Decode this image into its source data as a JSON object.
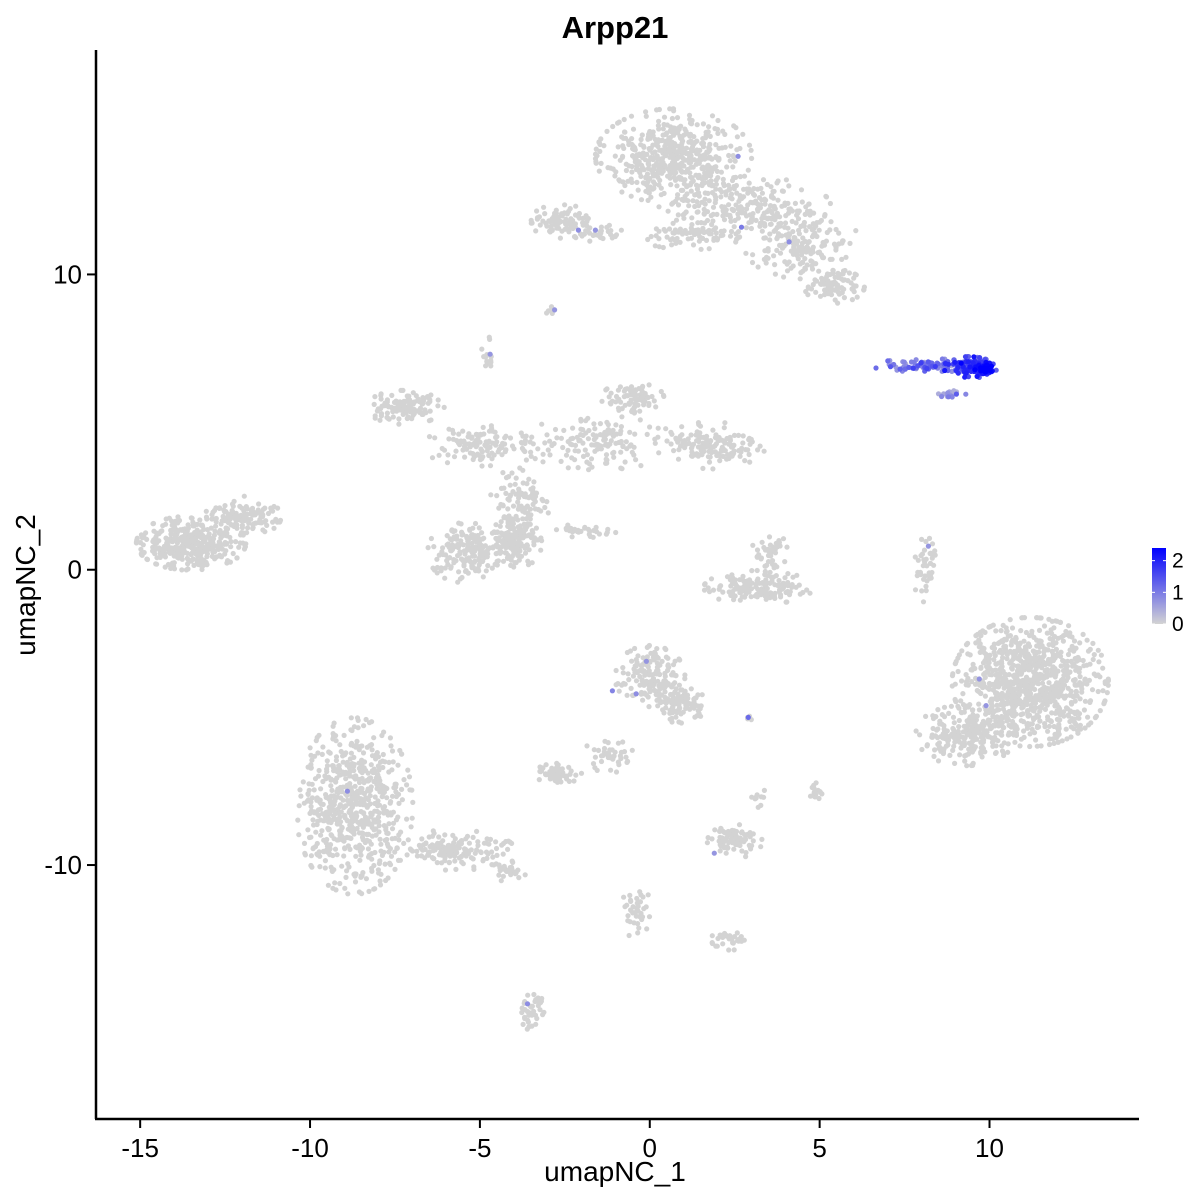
{
  "chart_data": {
    "type": "scatter",
    "title": "Arpp21",
    "xlabel": "umapNC_1",
    "ylabel": "umapNC_2",
    "xlim": [
      -16.3,
      14.4
    ],
    "ylim": [
      -18.6,
      17.6
    ],
    "x_ticks": [
      -15,
      -10,
      -5,
      0,
      5,
      10
    ],
    "y_ticks": [
      -10,
      0,
      10
    ],
    "x_tick_labels": [
      "-15",
      "-10",
      "-5",
      "0",
      "5",
      "10"
    ],
    "y_tick_labels": [
      "-10",
      "0",
      "10"
    ],
    "grid": false,
    "legend_position": "right",
    "color_scale": {
      "low_color": "#d3d3d3",
      "high_color": "#0000ff",
      "min": 0,
      "max": 2.4,
      "tick_values": [
        0,
        1,
        2
      ],
      "tick_labels": [
        "0",
        "1",
        "2"
      ]
    },
    "point_color_default": "#d3d3d3",
    "clusters": [
      {
        "cx": 0.7,
        "cy": 14.0,
        "rx": 2.0,
        "ry": 1.4,
        "n": 520,
        "expr": 0
      },
      {
        "cx": 2.8,
        "cy": 12.3,
        "rx": 2.2,
        "ry": 0.9,
        "n": 240,
        "expr": 0
      },
      {
        "cx": 4.5,
        "cy": 11.0,
        "rx": 1.5,
        "ry": 1.0,
        "n": 160,
        "expr": 0
      },
      {
        "cx": 5.4,
        "cy": 9.6,
        "rx": 0.8,
        "ry": 0.5,
        "n": 90,
        "expr": 0
      },
      {
        "cx": 1.2,
        "cy": 11.3,
        "rx": 1.3,
        "ry": 0.4,
        "n": 70,
        "expr": 0
      },
      {
        "cx": -2.6,
        "cy": 11.8,
        "rx": 0.8,
        "ry": 0.5,
        "n": 90,
        "expr": 0
      },
      {
        "cx": -1.5,
        "cy": 11.4,
        "rx": 0.7,
        "ry": 0.25,
        "n": 30,
        "expr": 0
      },
      {
        "cx": -2.9,
        "cy": 8.8,
        "rx": 0.15,
        "ry": 0.15,
        "n": 6,
        "expr": 0
      },
      {
        "cx": -4.7,
        "cy": 7.3,
        "rx": 0.25,
        "ry": 0.5,
        "n": 14,
        "expr": 0
      },
      {
        "cx": -7.2,
        "cy": 5.5,
        "rx": 1.0,
        "ry": 0.5,
        "n": 120,
        "expr": 0
      },
      {
        "cx": -5.0,
        "cy": 4.2,
        "rx": 1.5,
        "ry": 0.6,
        "n": 110,
        "expr": 0
      },
      {
        "cx": -1.5,
        "cy": 4.3,
        "rx": 2.0,
        "ry": 0.8,
        "n": 150,
        "expr": 0
      },
      {
        "cx": -0.5,
        "cy": 5.8,
        "rx": 0.8,
        "ry": 0.5,
        "n": 80,
        "expr": 0
      },
      {
        "cx": 1.8,
        "cy": 4.2,
        "rx": 1.4,
        "ry": 0.7,
        "n": 140,
        "expr": 0
      },
      {
        "cx": -3.8,
        "cy": 2.0,
        "rx": 0.8,
        "ry": 1.6,
        "n": 110,
        "expr": 0
      },
      {
        "cx": -5.5,
        "cy": 0.6,
        "rx": 0.9,
        "ry": 0.9,
        "n": 160,
        "expr": 0
      },
      {
        "cx": -4.1,
        "cy": 0.9,
        "rx": 0.8,
        "ry": 0.8,
        "n": 150,
        "expr": 0
      },
      {
        "cx": -1.9,
        "cy": 1.3,
        "rx": 1.1,
        "ry": 0.2,
        "n": 30,
        "expr": 0
      },
      {
        "cx": -13.5,
        "cy": 0.9,
        "rx": 1.4,
        "ry": 0.8,
        "n": 380,
        "expr": 0
      },
      {
        "cx": -12.0,
        "cy": 1.8,
        "rx": 1.0,
        "ry": 0.6,
        "n": 120,
        "expr": 0
      },
      {
        "cx": 3.5,
        "cy": 0.6,
        "rx": 0.5,
        "ry": 0.6,
        "n": 40,
        "expr": 0
      },
      {
        "cx": 3.2,
        "cy": -0.6,
        "rx": 1.4,
        "ry": 0.5,
        "n": 150,
        "expr": 0
      },
      {
        "cx": 8.1,
        "cy": 0.0,
        "rx": 0.3,
        "ry": 1.0,
        "n": 40,
        "expr": 0
      },
      {
        "cx": 11.2,
        "cy": -3.8,
        "rx": 2.0,
        "ry": 1.9,
        "n": 950,
        "expr": 0
      },
      {
        "cx": 9.3,
        "cy": -5.6,
        "rx": 1.3,
        "ry": 0.9,
        "n": 220,
        "expr": 0
      },
      {
        "cx": 0.0,
        "cy": -3.6,
        "rx": 0.9,
        "ry": 0.9,
        "n": 160,
        "expr": 0
      },
      {
        "cx": 0.9,
        "cy": -4.5,
        "rx": 0.7,
        "ry": 0.6,
        "n": 90,
        "expr": 0
      },
      {
        "cx": -1.2,
        "cy": -6.2,
        "rx": 0.6,
        "ry": 0.6,
        "n": 40,
        "expr": 0
      },
      {
        "cx": -2.7,
        "cy": -6.9,
        "rx": 0.6,
        "ry": 0.3,
        "n": 60,
        "expr": 0
      },
      {
        "cx": 2.9,
        "cy": -5.0,
        "rx": 0.1,
        "ry": 0.1,
        "n": 5,
        "expr": 0
      },
      {
        "cx": 4.9,
        "cy": -7.5,
        "rx": 0.2,
        "ry": 0.3,
        "n": 14,
        "expr": 0
      },
      {
        "cx": 3.2,
        "cy": -7.7,
        "rx": 0.2,
        "ry": 0.3,
        "n": 10,
        "expr": 0
      },
      {
        "cx": 2.5,
        "cy": -9.2,
        "rx": 0.7,
        "ry": 0.5,
        "n": 80,
        "expr": 0
      },
      {
        "cx": 2.3,
        "cy": -12.6,
        "rx": 0.5,
        "ry": 0.3,
        "n": 30,
        "expr": 0
      },
      {
        "cx": -0.4,
        "cy": -11.5,
        "rx": 0.35,
        "ry": 0.9,
        "n": 40,
        "expr": 0
      },
      {
        "cx": -8.7,
        "cy": -8.0,
        "rx": 1.5,
        "ry": 2.6,
        "n": 650,
        "expr": 0
      },
      {
        "cx": -5.8,
        "cy": -9.5,
        "rx": 1.6,
        "ry": 0.6,
        "n": 150,
        "expr": 0
      },
      {
        "cx": -4.2,
        "cy": -10.2,
        "rx": 0.5,
        "ry": 0.3,
        "n": 30,
        "expr": 0
      },
      {
        "cx": -3.5,
        "cy": -14.9,
        "rx": 0.35,
        "ry": 0.6,
        "n": 40,
        "expr": 0
      },
      {
        "cx": 8.1,
        "cy": 6.9,
        "rx": 1.3,
        "ry": 0.22,
        "n": 100,
        "expr": 0.9
      },
      {
        "cx": 9.4,
        "cy": 6.85,
        "rx": 0.65,
        "ry": 0.32,
        "n": 130,
        "expr": 1.6
      },
      {
        "cx": 9.8,
        "cy": 6.8,
        "rx": 0.35,
        "ry": 0.2,
        "n": 50,
        "expr": 2.2
      },
      {
        "cx": 8.9,
        "cy": 5.95,
        "rx": 0.35,
        "ry": 0.15,
        "n": 16,
        "expr": 0.8
      }
    ],
    "singletons": [
      {
        "x": 2.6,
        "y": 14.0,
        "expr": 0.8
      },
      {
        "x": 2.7,
        "y": 11.6,
        "expr": 1.0
      },
      {
        "x": 4.1,
        "y": 11.1,
        "expr": 0.8
      },
      {
        "x": -2.1,
        "y": 11.5,
        "expr": 0.8
      },
      {
        "x": -1.6,
        "y": 11.5,
        "expr": 0.7
      },
      {
        "x": -2.8,
        "y": 8.8,
        "expr": 0.7
      },
      {
        "x": -4.7,
        "y": 7.3,
        "expr": 0.7
      },
      {
        "x": 8.2,
        "y": 0.8,
        "expr": 0.7
      },
      {
        "x": -0.1,
        "y": -3.1,
        "expr": 0.7
      },
      {
        "x": -1.1,
        "y": -4.1,
        "expr": 0.9
      },
      {
        "x": -0.4,
        "y": -4.2,
        "expr": 0.8
      },
      {
        "x": 2.9,
        "y": -5.0,
        "expr": 1.2
      },
      {
        "x": 9.7,
        "y": -3.7,
        "expr": 0.7
      },
      {
        "x": 9.9,
        "y": -4.6,
        "expr": 0.7
      },
      {
        "x": -8.9,
        "y": -7.5,
        "expr": 0.8
      },
      {
        "x": -3.6,
        "y": -14.7,
        "expr": 0.8
      },
      {
        "x": 1.9,
        "y": -9.6,
        "expr": 0.7
      }
    ]
  }
}
